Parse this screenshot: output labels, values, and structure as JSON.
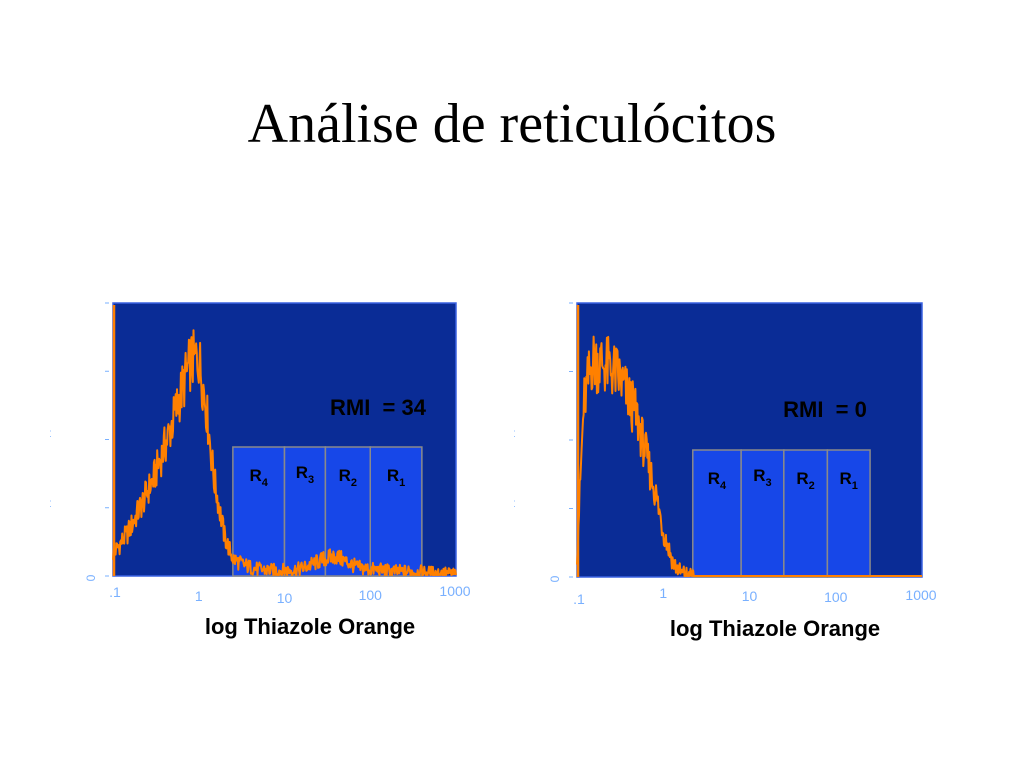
{
  "slide": {
    "title": "Análise de reticulócitos"
  },
  "colors": {
    "plot_background": "#0a2c96",
    "plot_border": "#3a62e0",
    "histogram": "#ff8000",
    "region_fill": "#1747e8",
    "region_border": "#8a8a8a",
    "axis_text": "#79b0ff",
    "annotation_text": "#000000"
  },
  "chart_data": [
    {
      "type": "area",
      "name": "left-histogram",
      "x_scale": "log",
      "xlim": [
        0.1,
        1000
      ],
      "xlabel": "log Thiazole Orange",
      "x_tick_labels": [
        ".1",
        "1",
        "10",
        "100",
        "1000"
      ],
      "x_tick_values": [
        0.1,
        1,
        10,
        100,
        1000
      ],
      "y_tick_labels": [
        "0"
      ],
      "annotation": "RMI  = 34",
      "regions": [
        {
          "label": "R",
          "sub": "4",
          "x": [
            2.5,
            10
          ]
        },
        {
          "label": "R",
          "sub": "3",
          "x": [
            10,
            30
          ]
        },
        {
          "label": "R",
          "sub": "2",
          "x": [
            30,
            100
          ]
        },
        {
          "label": "R",
          "sub": "1",
          "x": [
            100,
            400
          ]
        }
      ],
      "x": [
        0.1,
        0.15,
        0.2,
        0.3,
        0.45,
        0.6,
        0.8,
        1.0,
        1.2,
        1.5,
        2.0,
        2.5,
        3.0,
        4.0,
        5.0,
        7.0,
        10,
        15,
        20,
        30,
        40,
        50,
        70,
        100,
        150,
        200,
        300,
        500,
        700,
        1000
      ],
      "y": [
        10,
        20,
        30,
        45,
        65,
        82,
        98,
        100,
        80,
        45,
        18,
        8,
        6,
        4,
        3,
        2.5,
        2.5,
        3,
        5,
        8,
        9,
        7,
        4,
        3,
        2.5,
        2,
        2,
        1.5,
        1.2,
        1
      ],
      "ylim": [
        0,
        125
      ]
    },
    {
      "type": "area",
      "name": "right-histogram",
      "x_scale": "log",
      "xlim": [
        0.1,
        1000
      ],
      "xlabel": "log Thiazole Orange",
      "x_tick_labels": [
        ".1",
        "1",
        "10",
        "100",
        "1000"
      ],
      "x_tick_values": [
        0.1,
        1,
        10,
        100,
        1000
      ],
      "y_tick_labels": [
        "0"
      ],
      "annotation": "RMI  = 0",
      "regions": [
        {
          "label": "R",
          "sub": "4",
          "x": [
            2.2,
            8
          ]
        },
        {
          "label": "R",
          "sub": "3",
          "x": [
            8,
            25
          ]
        },
        {
          "label": "R",
          "sub": "2",
          "x": [
            25,
            80
          ]
        },
        {
          "label": "R",
          "sub": "1",
          "x": [
            80,
            250
          ]
        }
      ],
      "x": [
        0.1,
        0.12,
        0.15,
        0.2,
        0.25,
        0.3,
        0.4,
        0.5,
        0.6,
        0.8,
        1.0,
        1.3,
        1.6,
        2.0,
        2.5,
        3,
        5,
        10,
        100,
        1000
      ],
      "y": [
        8,
        60,
        75,
        74,
        72,
        70,
        62,
        55,
        45,
        30,
        16,
        5,
        1.5,
        0.5,
        0,
        0,
        0,
        0,
        0,
        0
      ],
      "ylim": [
        0,
        95
      ]
    }
  ]
}
